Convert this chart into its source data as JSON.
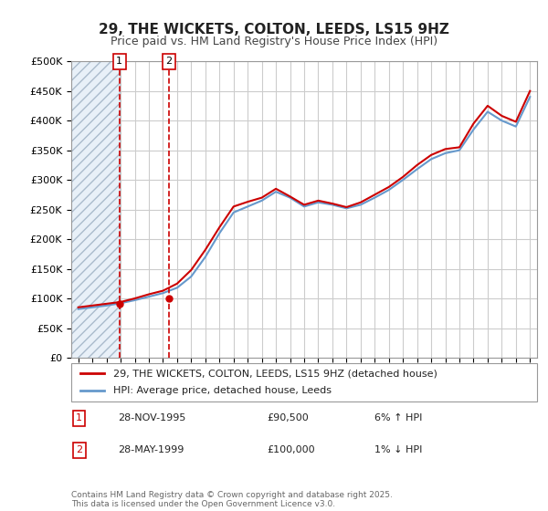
{
  "title": "29, THE WICKETS, COLTON, LEEDS, LS15 9HZ",
  "subtitle": "Price paid vs. HM Land Registry's House Price Index (HPI)",
  "ylabel": "",
  "ylim": [
    0,
    500000
  ],
  "yticks": [
    0,
    50000,
    100000,
    150000,
    200000,
    250000,
    300000,
    350000,
    400000,
    450000,
    500000
  ],
  "ytick_labels": [
    "£0",
    "£50K",
    "£100K",
    "£150K",
    "£200K",
    "£250K",
    "£300K",
    "£350K",
    "£400K",
    "£450K",
    "£500K"
  ],
  "xlim_start": 1992.5,
  "xlim_end": 2025.5,
  "sale1_year": 1995.91,
  "sale1_price": 90500,
  "sale1_label": "1",
  "sale1_date": "28-NOV-1995",
  "sale1_amount": "£90,500",
  "sale1_hpi": "6% ↑ HPI",
  "sale2_year": 1999.41,
  "sale2_price": 100000,
  "sale2_label": "2",
  "sale2_date": "28-MAY-1999",
  "sale2_amount": "£100,000",
  "sale2_hpi": "1% ↓ HPI",
  "red_line_color": "#cc0000",
  "blue_line_color": "#6699cc",
  "hatch_color": "#d0e0f0",
  "grid_color": "#cccccc",
  "background_color": "#ffffff",
  "legend_line1": "29, THE WICKETS, COLTON, LEEDS, LS15 9HZ (detached house)",
  "legend_line2": "HPI: Average price, detached house, Leeds",
  "footer": "Contains HM Land Registry data © Crown copyright and database right 2025.\nThis data is licensed under the Open Government Licence v3.0.",
  "hpi_years": [
    1993,
    1994,
    1995,
    1996,
    1997,
    1998,
    1999,
    2000,
    2001,
    2002,
    2003,
    2004,
    2005,
    2006,
    2007,
    2008,
    2009,
    2010,
    2011,
    2012,
    2013,
    2014,
    2015,
    2016,
    2017,
    2018,
    2019,
    2020,
    2021,
    2022,
    2023,
    2024,
    2025
  ],
  "hpi_values": [
    82000,
    85000,
    88000,
    92000,
    97000,
    103000,
    109000,
    118000,
    137000,
    170000,
    210000,
    245000,
    255000,
    265000,
    280000,
    270000,
    255000,
    262000,
    258000,
    252000,
    258000,
    270000,
    283000,
    300000,
    318000,
    335000,
    345000,
    350000,
    385000,
    415000,
    400000,
    390000,
    440000
  ],
  "red_years": [
    1993,
    1994,
    1995,
    1996,
    1997,
    1998,
    1999,
    2000,
    2001,
    2002,
    2003,
    2004,
    2005,
    2006,
    2007,
    2008,
    2009,
    2010,
    2011,
    2012,
    2013,
    2014,
    2015,
    2016,
    2017,
    2018,
    2019,
    2020,
    2021,
    2022,
    2023,
    2024,
    2025
  ],
  "red_values": [
    85000,
    88000,
    91000,
    94000,
    100000,
    107000,
    113000,
    125000,
    148000,
    182000,
    220000,
    255000,
    263000,
    270000,
    285000,
    272000,
    258000,
    265000,
    260000,
    254000,
    262000,
    275000,
    288000,
    305000,
    325000,
    342000,
    352000,
    355000,
    395000,
    425000,
    408000,
    398000,
    450000
  ]
}
